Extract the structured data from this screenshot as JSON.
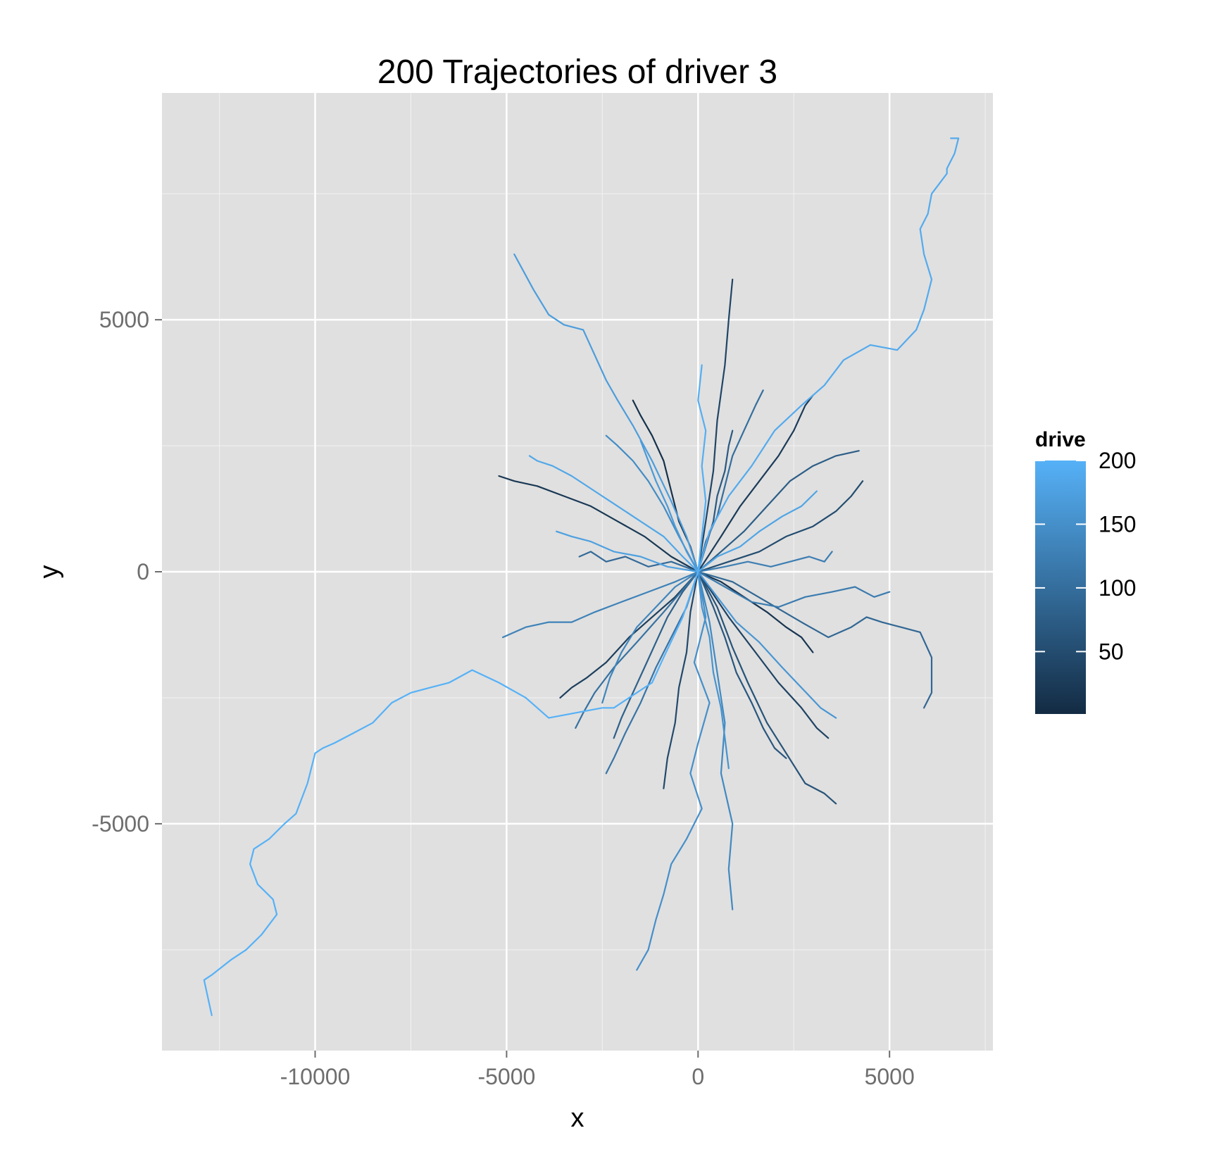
{
  "chart_data": {
    "type": "line",
    "title": "200 Trajectories of driver 3",
    "xlabel": "x",
    "ylabel": "y",
    "xlim": [
      -14000,
      7700
    ],
    "ylim": [
      -9500,
      9500
    ],
    "x_ticks": [
      -10000,
      -5000,
      0,
      5000
    ],
    "y_ticks": [
      -5000,
      0,
      5000
    ],
    "x_tick_labels": [
      "-10000",
      "-5000",
      "0",
      "5000"
    ],
    "y_tick_labels": [
      "-5000",
      "0",
      "5000"
    ],
    "grid": true,
    "background": "#e0e0e0",
    "color_scale": {
      "name": "drive",
      "min": 1,
      "max": 200,
      "low_color": "#132b43",
      "high_color": "#56b1f7",
      "breaks": [
        50,
        100,
        150,
        200
      ],
      "break_labels": [
        "50",
        "100",
        "150",
        "200"
      ],
      "legend_position": "right"
    },
    "series": [
      {
        "drive": 200,
        "x": [
          0,
          -400,
          -900,
          -1200,
          -1800,
          -2200,
          -2500,
          -3200,
          -3900,
          -4500,
          -5200,
          -5900,
          -6500,
          -7000,
          -7500,
          -8000,
          -8500,
          -9000,
          -9500,
          -9800,
          -10000,
          -10200,
          -10500,
          -10800,
          -11200,
          -11600,
          -11700,
          -11500,
          -11100,
          -11000,
          -11400,
          -11800,
          -12200,
          -12700,
          -12900,
          -12700
        ],
        "y": [
          0,
          -900,
          -1700,
          -2200,
          -2500,
          -2700,
          -2700,
          -2800,
          -2900,
          -2500,
          -2200,
          -1950,
          -2200,
          -2300,
          -2400,
          -2600,
          -3000,
          -3200,
          -3400,
          -3500,
          -3600,
          -4200,
          -4800,
          -5000,
          -5300,
          -5500,
          -5800,
          -6200,
          -6500,
          -6800,
          -7200,
          -7500,
          -7700,
          -8000,
          -8100,
          -8800
        ]
      },
      {
        "drive": 190,
        "x": [
          0,
          300,
          800,
          1400,
          2000,
          2700,
          3300,
          3800,
          4500,
          5200,
          5700,
          5900,
          6000,
          6100,
          5900,
          5800,
          6000,
          6100,
          6300,
          6500,
          6500,
          6700,
          6800,
          6600
        ],
        "y": [
          0,
          800,
          1500,
          2100,
          2800,
          3300,
          3700,
          4200,
          4500,
          4400,
          4800,
          5200,
          5500,
          5800,
          6300,
          6800,
          7100,
          7500,
          7700,
          7900,
          8000,
          8300,
          8600,
          8600
        ]
      },
      {
        "drive": 170,
        "x": [
          0,
          -300,
          -700,
          -1200,
          -1700,
          -2100,
          -2400,
          -2700,
          -3000,
          -3500,
          -3900,
          -4300,
          -4800
        ],
        "y": [
          0,
          700,
          1400,
          2200,
          2900,
          3400,
          3800,
          4300,
          4800,
          4900,
          5100,
          5600,
          6300
        ]
      },
      {
        "drive": 150,
        "x": [
          0,
          200,
          -100,
          300,
          0,
          -200,
          100,
          -300,
          -700,
          -900,
          -1100,
          -1300,
          -1600
        ],
        "y": [
          0,
          -900,
          -1800,
          -2600,
          -3400,
          -4000,
          -4700,
          -5300,
          -5800,
          -6400,
          -6900,
          -7500,
          -7900
        ]
      },
      {
        "drive": 140,
        "x": [
          0,
          300,
          500,
          700,
          600,
          900,
          800,
          900
        ],
        "y": [
          0,
          -1000,
          -2000,
          -3000,
          -4000,
          -5000,
          -5900,
          -6700
        ]
      },
      {
        "drive": 60,
        "x": [
          0,
          500,
          900,
          1300,
          1800,
          2300,
          2800,
          3300,
          3600
        ],
        "y": [
          0,
          -700,
          -1500,
          -2200,
          -3000,
          -3600,
          -4200,
          -4400,
          -4600
        ]
      },
      {
        "drive": 40,
        "x": [
          0,
          200,
          400,
          500,
          700,
          800,
          900
        ],
        "y": [
          0,
          1000,
          2000,
          3000,
          4100,
          5000,
          5800
        ]
      },
      {
        "drive": 130,
        "x": [
          0,
          -600,
          -1300,
          -2000,
          -2700,
          -3300,
          -3900,
          -4500,
          -5100
        ],
        "y": [
          0,
          -200,
          -400,
          -600,
          -800,
          -1000,
          -1000,
          -1100,
          -1300
        ]
      },
      {
        "drive": 20,
        "x": [
          0,
          -700,
          -1400,
          -2100,
          -2800,
          -3500,
          -4200,
          -4800,
          -5200
        ],
        "y": [
          0,
          300,
          700,
          1000,
          1300,
          1500,
          1700,
          1800,
          1900
        ]
      },
      {
        "drive": 185,
        "x": [
          0,
          -400,
          -900,
          -1500,
          -2100,
          -2700,
          -3300,
          -3800,
          -4200,
          -4400
        ],
        "y": [
          0,
          300,
          700,
          1000,
          1300,
          1600,
          1900,
          2100,
          2200,
          2300
        ]
      },
      {
        "drive": 120,
        "x": [
          0,
          700,
          1400,
          2100,
          2800,
          3500,
          4100,
          4600,
          5000
        ],
        "y": [
          0,
          -300,
          -600,
          -700,
          -500,
          -400,
          -300,
          -500,
          -400
        ]
      },
      {
        "drive": 90,
        "x": [
          0,
          900,
          1800,
          2700,
          3400,
          4000,
          4400,
          4800,
          5300,
          5800,
          6100,
          6100,
          5900
        ],
        "y": [
          0,
          -200,
          -600,
          -1000,
          -1300,
          -1100,
          -900,
          -1000,
          -1100,
          -1200,
          -1700,
          -2400,
          -2700
        ]
      },
      {
        "drive": 75,
        "x": [
          0,
          600,
          1200,
          1800,
          2400,
          3000,
          3600,
          4200
        ],
        "y": [
          0,
          400,
          800,
          1300,
          1800,
          2100,
          2300,
          2400
        ]
      },
      {
        "drive": 160,
        "x": [
          0,
          500,
          1000,
          1600,
          2200,
          2700,
          3200,
          3600
        ],
        "y": [
          0,
          -500,
          -1000,
          -1400,
          -1900,
          -2300,
          -2700,
          -2900
        ]
      },
      {
        "drive": 30,
        "x": [
          0,
          -600,
          -1200,
          -1800,
          -2400,
          -2900,
          -3300,
          -3600
        ],
        "y": [
          0,
          -500,
          -900,
          -1300,
          -1800,
          -2100,
          -2300,
          -2500
        ]
      },
      {
        "drive": 110,
        "x": [
          0,
          -300,
          -700,
          -1100,
          -1500,
          -1900,
          -2200,
          -2400
        ],
        "y": [
          0,
          -700,
          -1300,
          -1900,
          -2600,
          -3200,
          -3700,
          -4000
        ]
      },
      {
        "drive": 100,
        "x": [
          0,
          200,
          500,
          700,
          900,
          1200,
          1500,
          1700
        ],
        "y": [
          0,
          600,
          1100,
          1700,
          2300,
          2800,
          3300,
          3600
        ]
      },
      {
        "drive": 10,
        "x": [
          0,
          -200,
          -500,
          -700,
          -900,
          -1200,
          -1500,
          -1700
        ],
        "y": [
          0,
          500,
          1000,
          1600,
          2200,
          2700,
          3100,
          3400
        ]
      },
      {
        "drive": 195,
        "x": [
          0,
          100,
          200,
          100,
          200,
          0,
          100
        ],
        "y": [
          0,
          700,
          1400,
          2100,
          2800,
          3400,
          4100
        ]
      },
      {
        "drive": 80,
        "x": [
          0,
          -400,
          -800,
          -1100,
          -1400,
          -1700,
          -2000,
          -2200
        ],
        "y": [
          0,
          -400,
          -900,
          -1400,
          -1900,
          -2400,
          -2900,
          -3300
        ]
      },
      {
        "drive": 50,
        "x": [
          0,
          800,
          1600,
          2300,
          3000,
          3600,
          4000,
          4300
        ],
        "y": [
          0,
          200,
          400,
          700,
          900,
          1200,
          1500,
          1800
        ]
      },
      {
        "drive": 175,
        "x": [
          0,
          -800,
          -1500,
          -2200,
          -2800,
          -3300,
          -3700
        ],
        "y": [
          0,
          100,
          300,
          400,
          600,
          700,
          800
        ]
      },
      {
        "drive": 65,
        "x": [
          0,
          400,
          700,
          1000,
          1400,
          1700,
          2000,
          2300
        ],
        "y": [
          0,
          -700,
          -1300,
          -2000,
          -2600,
          -3100,
          -3500,
          -3700
        ]
      },
      {
        "drive": 145,
        "x": [
          0,
          -500,
          -900,
          -1300,
          -1700,
          -2100,
          -2400
        ],
        "y": [
          0,
          700,
          1300,
          1800,
          2200,
          2500,
          2700
        ]
      },
      {
        "drive": 25,
        "x": [
          0,
          600,
          1100,
          1600,
          2100,
          2500,
          2800,
          3000
        ],
        "y": [
          0,
          700,
          1300,
          1800,
          2300,
          2800,
          3300,
          3500
        ]
      },
      {
        "drive": 125,
        "x": [
          0,
          700,
          1300,
          1900,
          2400,
          2900,
          3300,
          3500
        ],
        "y": [
          0,
          100,
          200,
          100,
          200,
          300,
          200,
          400
        ]
      },
      {
        "drive": 95,
        "x": [
          0,
          -700,
          -1300,
          -1900,
          -2400,
          -2800,
          -3100
        ],
        "y": [
          0,
          200,
          100,
          300,
          200,
          400,
          300
        ]
      },
      {
        "drive": 155,
        "x": [
          0,
          100,
          300,
          400,
          600,
          700,
          800
        ],
        "y": [
          0,
          -700,
          -1300,
          -2000,
          -2700,
          -3300,
          -3900
        ]
      },
      {
        "drive": 45,
        "x": [
          0,
          -200,
          -300,
          -500,
          -600,
          -800,
          -900
        ],
        "y": [
          0,
          -800,
          -1600,
          -2300,
          -3000,
          -3700,
          -4300
        ]
      },
      {
        "drive": 180,
        "x": [
          0,
          500,
          1100,
          1600,
          2200,
          2700,
          3100
        ],
        "y": [
          0,
          300,
          500,
          800,
          1100,
          1300,
          1600
        ]
      },
      {
        "drive": 15,
        "x": [
          0,
          600,
          1200,
          1800,
          2300,
          2700,
          3000
        ],
        "y": [
          0,
          -200,
          -500,
          -800,
          -1100,
          -1300,
          -1600
        ]
      },
      {
        "drive": 135,
        "x": [
          0,
          -600,
          -1100,
          -1600,
          -2000,
          -2300,
          -2500
        ],
        "y": [
          0,
          -300,
          -700,
          -1100,
          -1600,
          -2100,
          -2600
        ]
      },
      {
        "drive": 70,
        "x": [
          0,
          200,
          400,
          500,
          700,
          800,
          900
        ],
        "y": [
          0,
          500,
          1000,
          1500,
          2000,
          2500,
          2800
        ]
      },
      {
        "drive": 165,
        "x": [
          0,
          -300,
          -600,
          -800,
          -1100,
          -1300,
          -1500
        ],
        "y": [
          0,
          400,
          900,
          1300,
          1800,
          2200,
          2600
        ]
      },
      {
        "drive": 35,
        "x": [
          0,
          800,
          1500,
          2100,
          2700,
          3100,
          3400
        ],
        "y": [
          0,
          -900,
          -1600,
          -2200,
          -2700,
          -3100,
          -3300
        ]
      },
      {
        "drive": 105,
        "x": [
          0,
          -900,
          -1600,
          -2200,
          -2700,
          -3000,
          -3200
        ],
        "y": [
          0,
          -800,
          -1400,
          -1900,
          -2400,
          -2800,
          -3100
        ]
      }
    ]
  }
}
